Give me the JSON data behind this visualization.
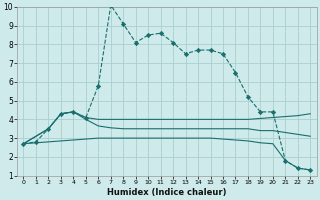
{
  "xlabel": "Humidex (Indice chaleur)",
  "background_color": "#ceeaea",
  "grid_color": "#aacfcf",
  "line_color": "#1a6e6e",
  "xlim": [
    -0.5,
    23.5
  ],
  "ylim": [
    1,
    10
  ],
  "xticks": [
    0,
    1,
    2,
    3,
    4,
    5,
    6,
    7,
    8,
    9,
    10,
    11,
    12,
    13,
    14,
    15,
    16,
    17,
    18,
    19,
    20,
    21,
    22,
    23
  ],
  "yticks": [
    1,
    2,
    3,
    4,
    5,
    6,
    7,
    8,
    9,
    10
  ],
  "line_main": {
    "x": [
      0,
      1,
      2,
      3,
      4,
      5,
      6,
      7,
      8,
      9,
      10,
      11,
      12,
      13,
      14,
      15,
      16,
      17,
      18,
      19,
      20,
      21,
      22,
      23
    ],
    "y": [
      2.7,
      2.8,
      3.5,
      4.3,
      4.4,
      4.1,
      5.8,
      10.1,
      9.1,
      8.1,
      8.5,
      8.6,
      8.1,
      7.5,
      7.7,
      7.7,
      7.5,
      6.5,
      5.2,
      4.4,
      4.4,
      1.8,
      1.4,
      1.3
    ]
  },
  "line_flat_upper": {
    "x": [
      0,
      2,
      3,
      4,
      5,
      6,
      7,
      8,
      9,
      10,
      11,
      12,
      13,
      14,
      15,
      16,
      17,
      18,
      19,
      20,
      22,
      23
    ],
    "y": [
      2.7,
      3.5,
      4.3,
      4.4,
      4.1,
      4.0,
      4.0,
      4.0,
      4.0,
      4.0,
      4.0,
      4.0,
      4.0,
      4.0,
      4.0,
      4.0,
      4.0,
      4.0,
      4.05,
      4.1,
      4.2,
      4.3
    ]
  },
  "line_flat_mid": {
    "x": [
      0,
      2,
      3,
      4,
      5,
      6,
      7,
      8,
      9,
      10,
      11,
      12,
      13,
      14,
      15,
      16,
      17,
      18,
      19,
      20,
      22,
      23
    ],
    "y": [
      2.7,
      3.5,
      4.3,
      4.4,
      4.0,
      3.65,
      3.55,
      3.5,
      3.5,
      3.5,
      3.5,
      3.5,
      3.5,
      3.5,
      3.5,
      3.5,
      3.5,
      3.5,
      3.4,
      3.4,
      3.2,
      3.1
    ]
  },
  "line_diagonal": {
    "x": [
      0,
      1,
      2,
      3,
      4,
      5,
      6,
      7,
      8,
      9,
      10,
      11,
      12,
      13,
      14,
      15,
      16,
      17,
      18,
      19,
      20,
      21,
      22,
      23
    ],
    "y": [
      2.7,
      2.75,
      2.8,
      2.85,
      2.9,
      2.95,
      3.0,
      3.0,
      3.0,
      3.0,
      3.0,
      3.0,
      3.0,
      3.0,
      3.0,
      3.0,
      2.95,
      2.9,
      2.85,
      2.75,
      2.7,
      1.8,
      1.4,
      1.3
    ]
  }
}
